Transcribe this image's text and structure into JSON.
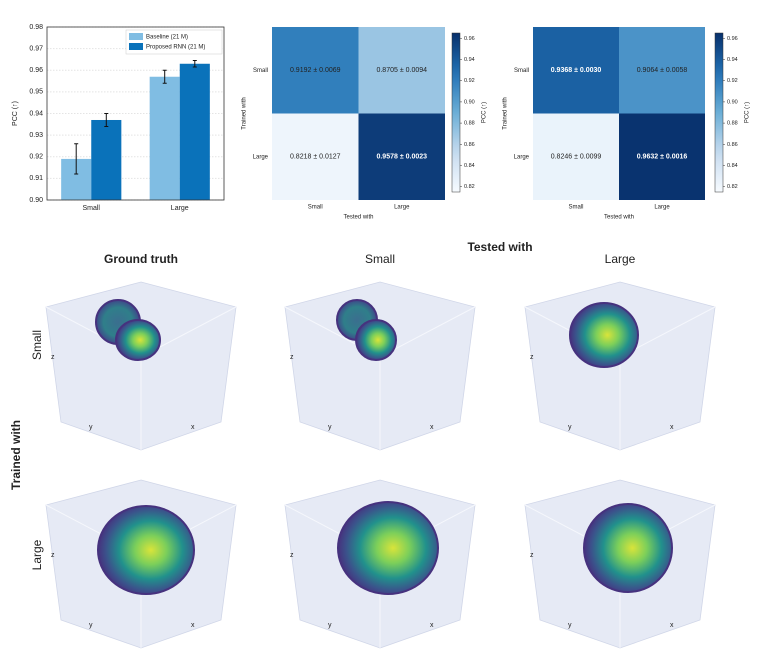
{
  "chart_data": [
    {
      "type": "bar",
      "y_label": "PCC (↑)",
      "categories": [
        "Small",
        "Large"
      ],
      "series": [
        {
          "name": "Baseline (21 M)",
          "color": "#80bde3",
          "values": [
            0.919,
            0.957
          ],
          "errors": [
            0.007,
            0.003
          ]
        },
        {
          "name": "Proposed RNN (21 M)",
          "color": "#0a72ba",
          "values": [
            0.937,
            0.963
          ],
          "errors": [
            0.003,
            0.0015
          ]
        }
      ],
      "ylim": [
        0.9,
        0.98
      ],
      "yticks": [
        {
          "value": 0.9,
          "label": "0.90"
        },
        0.91,
        0.92,
        0.93,
        0.94,
        0.95,
        0.96,
        0.97,
        0.98
      ],
      "grid": true,
      "legend": "upper right"
    },
    {
      "type": "heatmap",
      "x_label": "Tested with",
      "y_label": "Trained with",
      "colorbar_label": "PCC (↑)",
      "x_categories": [
        "Small",
        "Large"
      ],
      "y_categories": [
        "Small",
        "Large"
      ],
      "values": [
        [
          0.9192,
          0.8705
        ],
        [
          0.8218,
          0.9578
        ]
      ],
      "value_labels": [
        [
          "0.9192 ± 0.0069",
          "0.8705 ± 0.0094"
        ],
        [
          "0.8218 ± 0.0127",
          "0.9578 ± 0.0023"
        ]
      ],
      "clim": [
        0.815,
        0.965
      ],
      "colorbar_ticks": [
        0.82,
        0.84,
        0.86,
        0.88,
        {
          "value": 0.9,
          "label": "0.90"
        },
        0.92,
        0.94,
        0.96
      ],
      "colormap": "Blues"
    },
    {
      "type": "heatmap",
      "x_label": "Tested with",
      "y_label": "Trained with",
      "colorbar_label": "PCC (↑)",
      "x_categories": [
        "Small",
        "Large"
      ],
      "y_categories": [
        "Small",
        "Large"
      ],
      "values": [
        [
          0.9368,
          0.9064
        ],
        [
          0.8246,
          0.9632
        ]
      ],
      "value_labels": [
        [
          "0.9368 ± 0.0030",
          "0.9064 ± 0.0058"
        ],
        [
          "0.8246 ± 0.0099",
          "0.9632 ± 0.0016"
        ]
      ],
      "clim": [
        0.815,
        0.965
      ],
      "colorbar_ticks": [
        0.82,
        0.84,
        0.86,
        0.88,
        {
          "value": 0.9,
          "label": "0.90"
        },
        0.92,
        0.94,
        0.96
      ],
      "colormap": "Blues"
    }
  ],
  "volume_grid": {
    "title": "Tested with",
    "row_title": "Trained with",
    "columns": [
      "Ground truth",
      "Small",
      "Large"
    ],
    "rows": [
      "Small",
      "Large"
    ],
    "axis_labels": {
      "x": "x",
      "y": "y",
      "z": "z"
    }
  }
}
